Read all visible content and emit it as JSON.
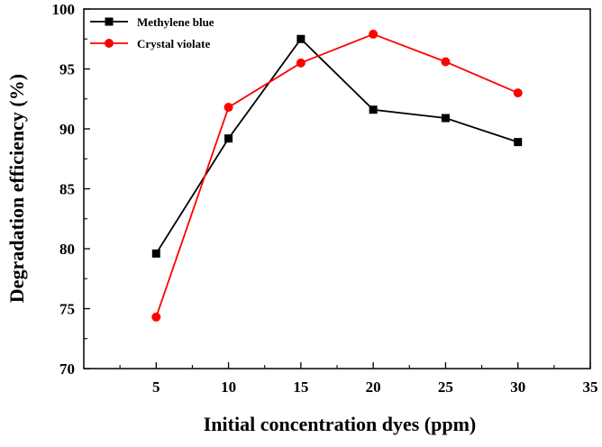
{
  "chart_data": {
    "type": "line",
    "title": "",
    "xlabel": "Initial concentration dyes (ppm)",
    "ylabel": "Degradation efficiency (%)",
    "xlim": [
      0,
      35
    ],
    "ylim": [
      70,
      100
    ],
    "x_ticks": [
      5,
      10,
      15,
      20,
      25,
      30,
      35
    ],
    "y_ticks": [
      70,
      75,
      80,
      85,
      90,
      95,
      100
    ],
    "x_minor_ticks": [
      2.5,
      7.5,
      12.5,
      17.5,
      22.5,
      27.5,
      32.5
    ],
    "y_minor_ticks": [
      72.5,
      77.5,
      82.5,
      87.5,
      92.5,
      97.5
    ],
    "grid": false,
    "legend_position": "top-left",
    "x": [
      5,
      10,
      15,
      20,
      25,
      30
    ],
    "series": [
      {
        "name": "Methylene blue",
        "color": "#000000",
        "marker": "square",
        "values": [
          79.6,
          89.2,
          97.5,
          91.6,
          90.9,
          88.9
        ]
      },
      {
        "name": "Crystal violate",
        "color": "#ff0000",
        "marker": "circle",
        "values": [
          74.3,
          91.8,
          95.5,
          97.9,
          95.6,
          93.0
        ]
      }
    ]
  }
}
